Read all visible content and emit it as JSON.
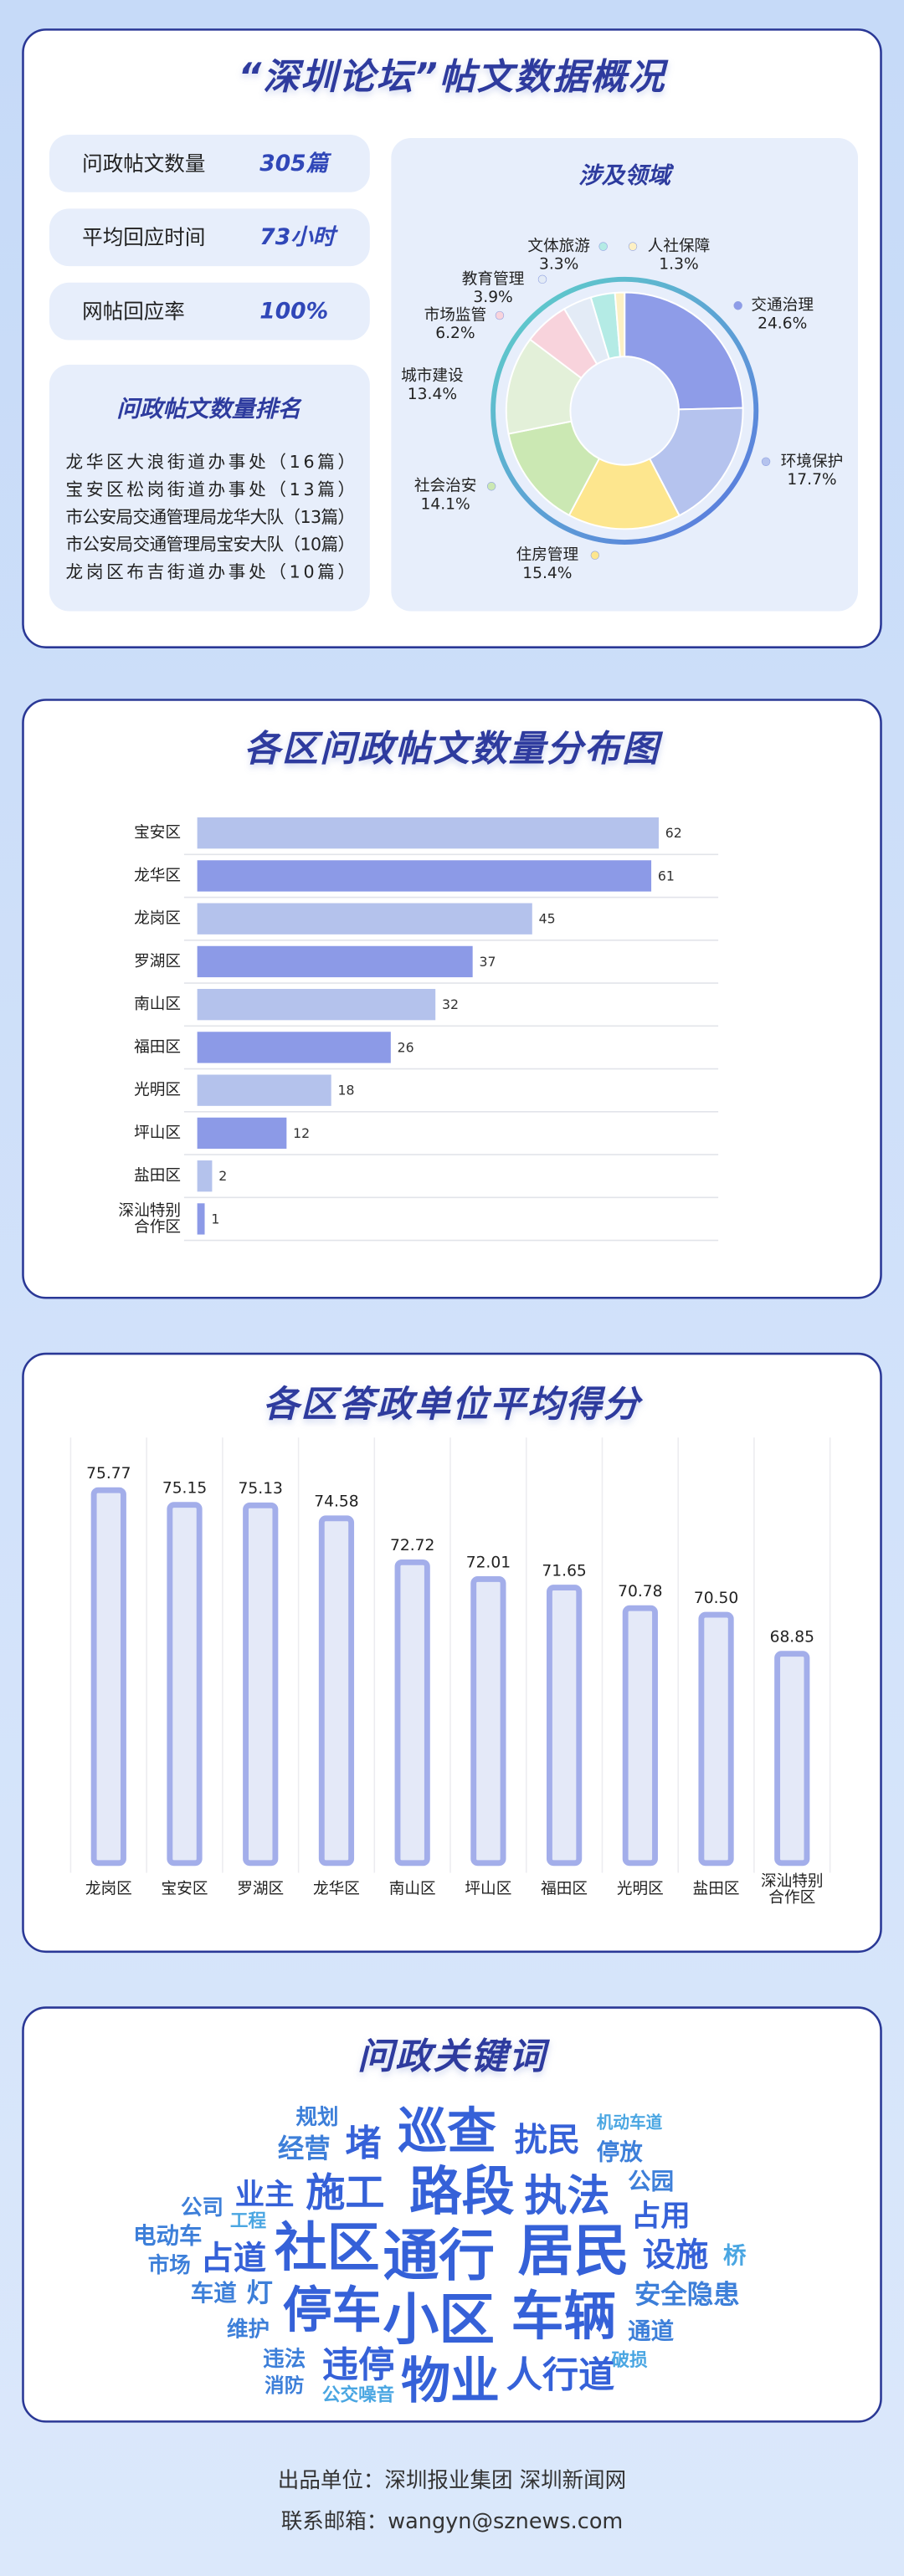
{
  "header": {
    "title": "“深圳论坛”帖文数据概况"
  },
  "stats": [
    {
      "label": "问政帖文数量",
      "value": "305篇"
    },
    {
      "label": "平均回应时间",
      "value": "73小时"
    },
    {
      "label": "网帖回应率",
      "value": "100%"
    }
  ],
  "ranking": {
    "title": "问政帖文数量排名",
    "items": [
      "龙华区大浪街道办事处（16篇）",
      "宝安区松岗街道办事处（13篇）",
      "市公安局交通管理局龙华大队（13篇）",
      "市公安局交通管理局宝安大队（10篇）",
      "龙岗区布吉街道办事处（10篇）"
    ]
  },
  "chart_data": [
    {
      "type": "pie",
      "title": "涉及领域",
      "categories": [
        "交通治理",
        "环境保护",
        "住房管理",
        "社会治安",
        "城市建设",
        "市场监管",
        "教育管理",
        "文体旅游",
        "人社保障"
      ],
      "values": [
        24.6,
        17.7,
        15.4,
        14.1,
        13.4,
        6.2,
        3.9,
        3.3,
        1.3
      ],
      "value_labels": [
        "24.6%",
        "17.7%",
        "15.4%",
        "14.1%",
        "13.4%",
        "6.2%",
        "3.9%",
        "3.3%",
        "1.3%"
      ],
      "colors": [
        "#8e9ce8",
        "#b5c3ee",
        "#fde68e",
        "#cbe8b3",
        "#e3f0d9",
        "#f8d3dc",
        "#e3ebf6",
        "#b4ebe5",
        "#fdf0c4"
      ]
    },
    {
      "type": "bar",
      "orientation": "horizontal",
      "title": "各区问政帖文数量分布图",
      "categories": [
        "宝安区",
        "龙华区",
        "龙岗区",
        "罗湖区",
        "南山区",
        "福田区",
        "光明区",
        "坪山区",
        "盐田区",
        "深汕特别\n合作区"
      ],
      "values": [
        62,
        61,
        45,
        37,
        32,
        26,
        18,
        12,
        2,
        1
      ],
      "colors": [
        "#b4c2ec",
        "#8c9ae7",
        "#b4c2ec",
        "#8c9ae7",
        "#b4c2ec",
        "#8c9ae7",
        "#b4c2ec",
        "#8c9ae7",
        "#b4c2ec",
        "#8c9ae7"
      ],
      "xlim": [
        0,
        70
      ]
    },
    {
      "type": "bar",
      "orientation": "vertical",
      "title": "各区答政单位平均得分",
      "categories": [
        "龙岗区",
        "宝安区",
        "罗湖区",
        "龙华区",
        "南山区",
        "坪山区",
        "福田区",
        "光明区",
        "盐田区",
        "深汕特别\n合作区"
      ],
      "values": [
        75.77,
        75.15,
        75.13,
        74.58,
        72.72,
        72.01,
        71.65,
        70.78,
        70.5,
        68.85
      ],
      "value_labels": [
        "75.77",
        "75.15",
        "75.13",
        "74.58",
        "72.72",
        "72.01",
        "71.65",
        "70.78",
        "70.50",
        "68.85"
      ],
      "color": "#e4e9f8",
      "edge_color": "#a3aeea",
      "ylim": [
        60,
        78
      ]
    }
  ],
  "keywords": {
    "title": "问政关键词",
    "words": [
      "规划",
      "巡查",
      "扰民",
      "机动车道",
      "经营",
      "堵",
      "停放",
      "施工",
      "路段",
      "执法",
      "公园",
      "公司",
      "业主",
      "占用",
      "工程",
      "电动车",
      "社区",
      "通行",
      "居民",
      "设施",
      "桥",
      "市场",
      "占道",
      "车道",
      "灯",
      "停车",
      "小区",
      "车辆",
      "安全隐患",
      "维护",
      "通道",
      "违法",
      "违停",
      "物业",
      "人行道",
      "破损",
      "消防",
      "公交噪音"
    ]
  },
  "footer": [
    "出品单位：深圳报业集团  深圳新闻网",
    "联系邮箱：wangyn@sznews.com"
  ]
}
